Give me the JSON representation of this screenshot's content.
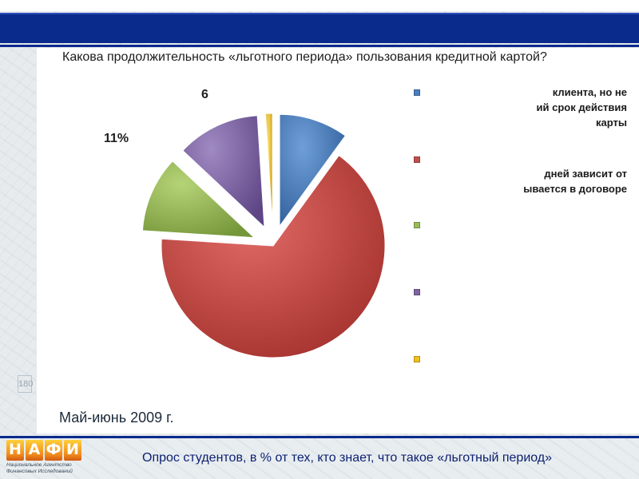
{
  "slide": {
    "question": "Какова продолжительность «льготного периода» пользования кредитной картой?",
    "date": "Май-июнь 2009 г.",
    "footer": "Опрос студентов, в % от тех, кто знает, что такое «льготный период»",
    "side_mark": "180"
  },
  "logo": {
    "letters": [
      "Н",
      "А",
      "Ф",
      "И"
    ],
    "caption_line1": "Национальное Агентство",
    "caption_line2": "Финансовых Исследований"
  },
  "legend": {
    "items": [
      {
        "text": "клиента, но не\nий срок действия\nкарты",
        "color": "#4a7fc0"
      },
      {
        "text": "дней зависит от\nывается в договоре",
        "color": "#c0504d"
      },
      {
        "text": "",
        "color": "#9bbb59"
      },
      {
        "text": "",
        "color": "#8064a2"
      },
      {
        "text": "",
        "color": "#f0c020"
      }
    ]
  },
  "chart_data": {
    "type": "pie",
    "title": "",
    "series": [
      {
        "label": "",
        "value": 10,
        "color": "#4a7fc0"
      },
      {
        "label": "",
        "value": 66,
        "color": "#c0504d"
      },
      {
        "label": "",
        "value": 11,
        "color": "#9bbb59"
      },
      {
        "label": "",
        "value": 12,
        "color": "#8064a2"
      },
      {
        "label": "",
        "value": 1,
        "color": "#f0c020"
      }
    ],
    "visible_data_labels": [
      "6",
      "11%"
    ]
  }
}
